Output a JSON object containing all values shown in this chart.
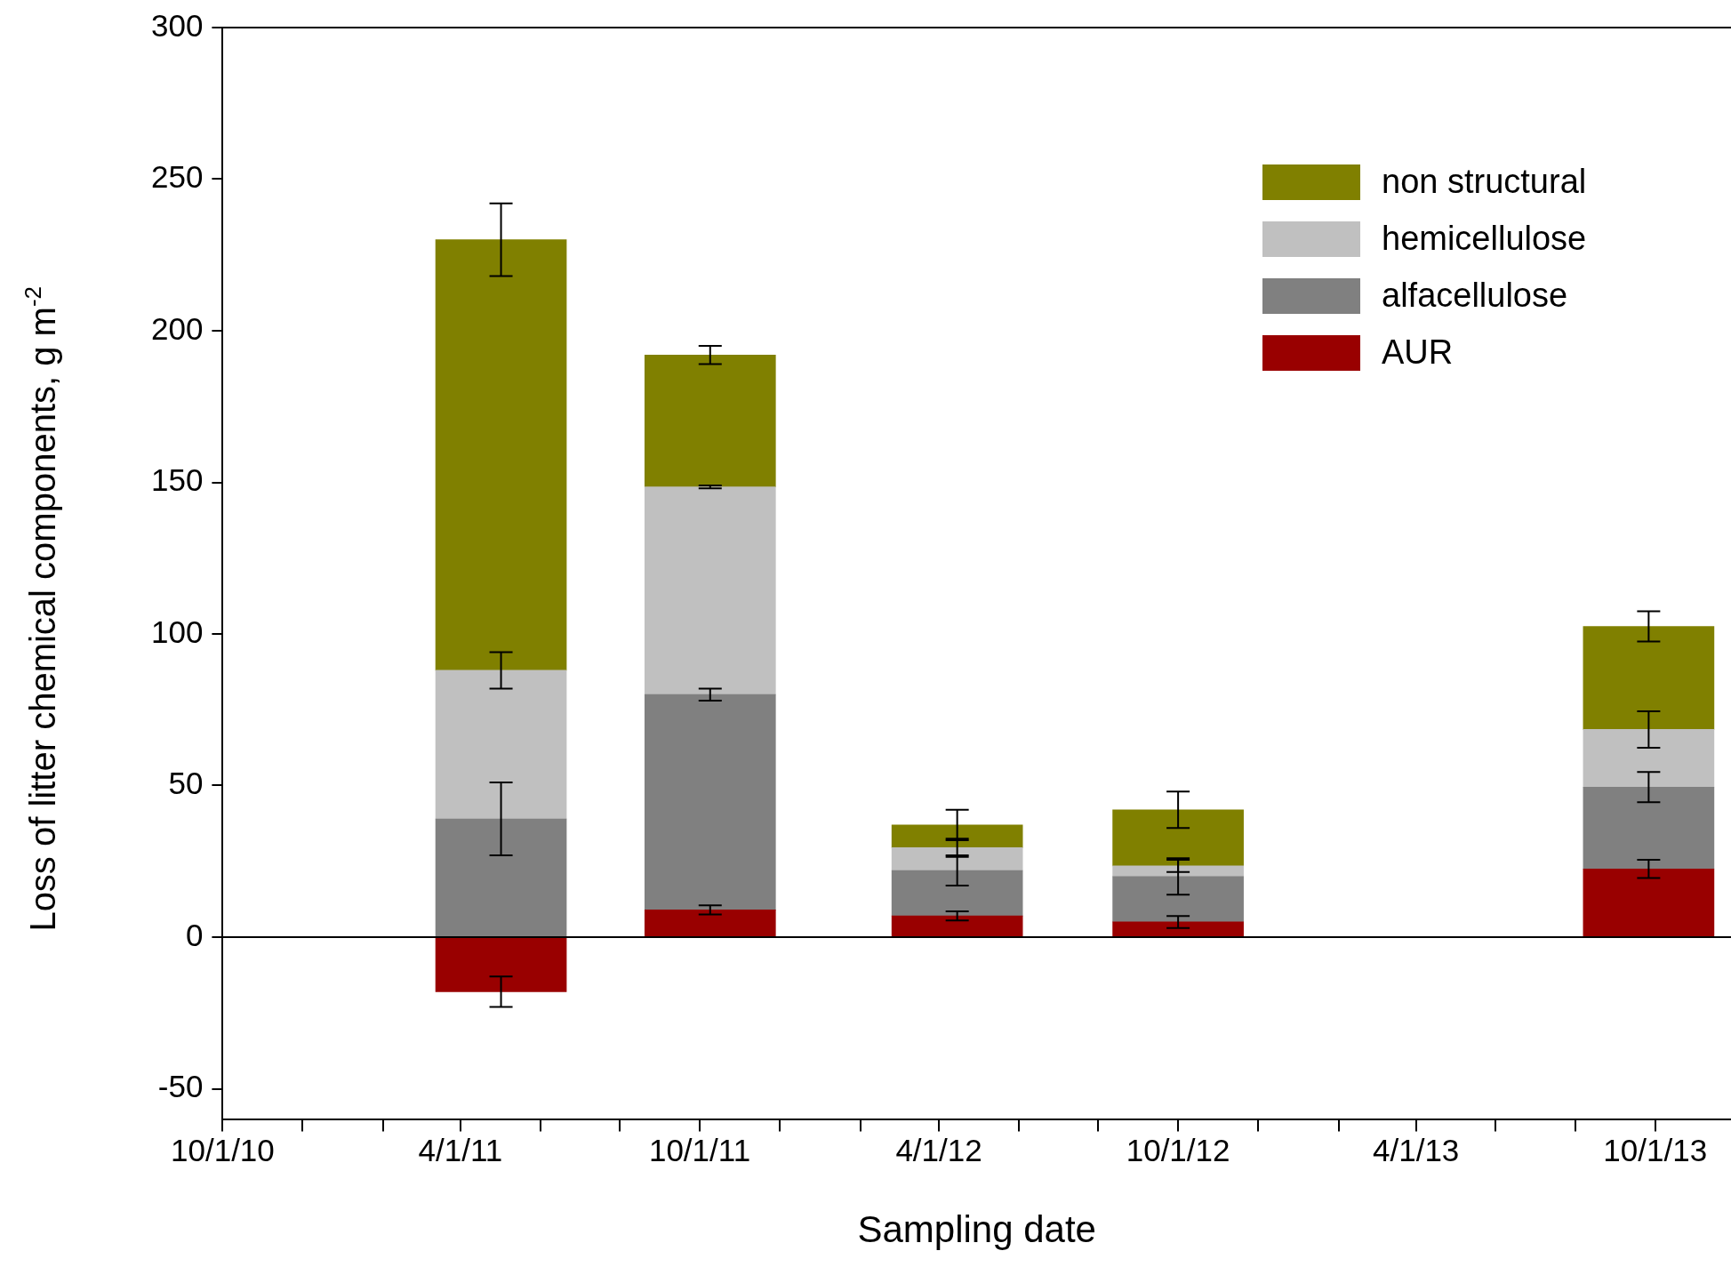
{
  "chart_data": {
    "type": "bar",
    "stacked": true,
    "xlabel": "Sampling date",
    "ylabel": "Loss of litter chemical components, g m$^{-2}$",
    "x": [
      "2011-05-02",
      "2011-10-09",
      "2012-04-15",
      "2012-10-01",
      "2013-09-26"
    ],
    "series": [
      {
        "name": "AUR",
        "color": "#990000",
        "values": [
          -18,
          9,
          7,
          5,
          22.5
        ],
        "errors": [
          5,
          1.5,
          1.5,
          2,
          3
        ]
      },
      {
        "name": "alfacellulose",
        "color": "#808080",
        "values": [
          39,
          71,
          15,
          15,
          27
        ],
        "errors": [
          12,
          2,
          5,
          6,
          5
        ]
      },
      {
        "name": "hemicellulose",
        "color": "#c0c0c0",
        "values": [
          49,
          68.5,
          7.5,
          3.5,
          19
        ],
        "errors": [
          6,
          0.5,
          3,
          2,
          6
        ]
      },
      {
        "name": "non structural",
        "color": "#808000",
        "values": [
          142,
          43.5,
          7.5,
          18.5,
          34
        ],
        "errors": [
          12,
          3,
          5,
          6,
          5
        ]
      }
    ],
    "xlim": [
      "2010-10-01",
      "2013-11-28"
    ],
    "xticks": [
      {
        "value": "2010-10-01",
        "label": "10/1/10"
      },
      {
        "value": "2010-12-01",
        "label": null
      },
      {
        "value": "2011-02-01",
        "label": null
      },
      {
        "value": "2011-04-01",
        "label": "4/1/11"
      },
      {
        "value": "2011-06-01",
        "label": null
      },
      {
        "value": "2011-08-01",
        "label": null
      },
      {
        "value": "2011-10-01",
        "label": "10/1/11"
      },
      {
        "value": "2011-12-01",
        "label": null
      },
      {
        "value": "2012-02-01",
        "label": null
      },
      {
        "value": "2012-04-01",
        "label": "4/1/12"
      },
      {
        "value": "2012-06-01",
        "label": null
      },
      {
        "value": "2012-08-01",
        "label": null
      },
      {
        "value": "2012-10-01",
        "label": "10/1/12"
      },
      {
        "value": "2012-12-01",
        "label": null
      },
      {
        "value": "2013-02-01",
        "label": null
      },
      {
        "value": "2013-04-01",
        "label": "4/1/13"
      },
      {
        "value": "2013-06-01",
        "label": null
      },
      {
        "value": "2013-08-01",
        "label": null
      },
      {
        "value": "2013-10-01",
        "label": "10/1/13"
      }
    ],
    "ylim": [
      -60,
      300
    ],
    "yticks": [
      -50,
      0,
      50,
      100,
      150,
      200,
      250,
      300
    ],
    "ref_lines": [
      {
        "axis": "y",
        "value": 0,
        "color": "#000000"
      }
    ],
    "grid": false,
    "legend": "top right"
  }
}
